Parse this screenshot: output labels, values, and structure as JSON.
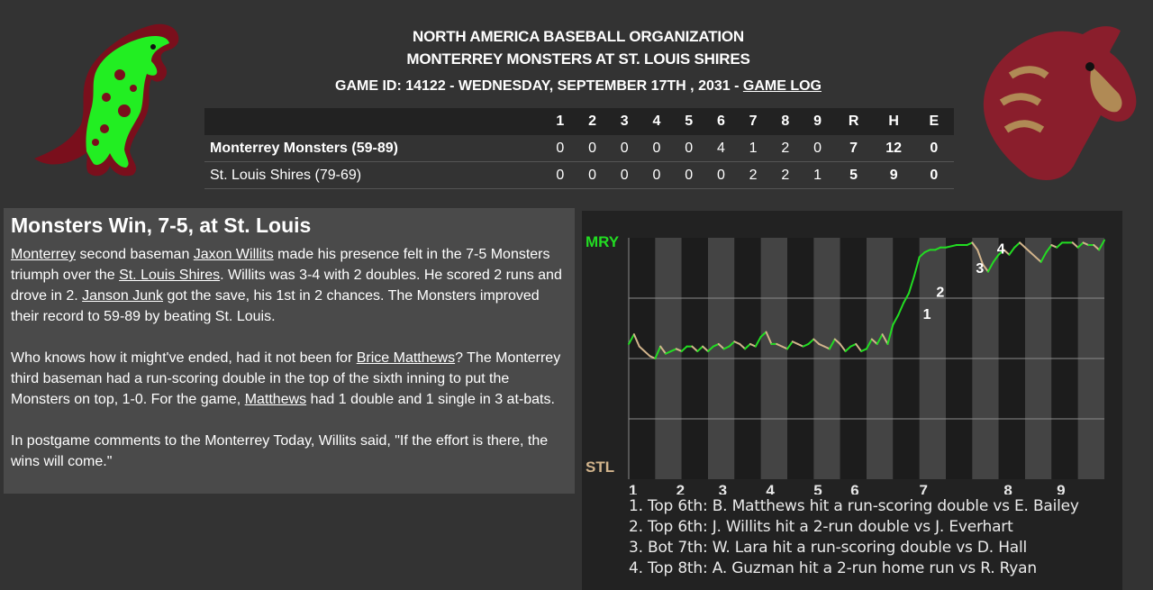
{
  "header": {
    "org": "NORTH AMERICA BASEBALL ORGANIZATION",
    "matchup": "MONTERREY MONSTERS AT ST. LOUIS SHIRES",
    "game_info": "GAME ID: 14122 - WEDNESDAY, SEPTEMBER 17TH , 2031 - ",
    "game_log_link": "GAME LOG",
    "home_logo": "horse-head-logo",
    "away_logo": "dinosaur-monster-logo"
  },
  "boxscore": {
    "innings": [
      "1",
      "2",
      "3",
      "4",
      "5",
      "6",
      "7",
      "8",
      "9"
    ],
    "totals_headers": [
      "R",
      "H",
      "E"
    ],
    "rows": [
      {
        "team": "Monterrey Monsters (59-89)",
        "innings": [
          "0",
          "0",
          "0",
          "0",
          "0",
          "4",
          "1",
          "2",
          "0"
        ],
        "totals": [
          "7",
          "12",
          "0"
        ]
      },
      {
        "team": "St. Louis Shires (79-69)",
        "innings": [
          "0",
          "0",
          "0",
          "0",
          "0",
          "0",
          "2",
          "2",
          "1"
        ],
        "totals": [
          "5",
          "9",
          "0"
        ]
      }
    ]
  },
  "article": {
    "headline": "Monsters Win, 7-5, at St. Louis",
    "p1": {
      "link_team": "Monterrey",
      "t1": " second baseman ",
      "link_player1": "Jaxon Willits",
      "t2": " made his presence felt in the 7-5 Monsters triumph over the ",
      "link_opponent": "St. Louis Shires",
      "t3": ". Willits was 3-4 with 2 doubles. He scored 2 runs and drove in 2. ",
      "link_player2": "Janson Junk",
      "t4": " got the save, his 1st in 2 chances. The Monsters improved their record to 59-89 by beating St. Louis."
    },
    "p2": {
      "t1": "Who knows how it might've ended, had it not been for ",
      "link_player": "Brice Matthews",
      "t2": "? The Monterrey third baseman had a run-scoring double in the top of the sixth inning to put the Monsters on top, 1-0. For the game, ",
      "link_player_b": "Matthews",
      "t3": " had 1 double and 1 single in 3 at-bats."
    },
    "p3": "In postgame comments to the Monterrey Today, Willits said, \"If the effort is there, the wins will come.\""
  },
  "chart_data": {
    "type": "line",
    "title": "",
    "y_top_label": "MRY",
    "y_bottom_label": "STL",
    "x_labels": [
      "1",
      "2",
      "3",
      "4",
      "5",
      "6",
      "7",
      "8",
      "9"
    ],
    "ylim": [
      0,
      1
    ],
    "colors": {
      "away": "#22dd22",
      "home": "#d2b48c"
    },
    "markers": [
      {
        "label": "1",
        "x": 6.5,
        "y": 0.68
      },
      {
        "label": "2",
        "x": 6.75,
        "y": 0.77
      },
      {
        "label": "3",
        "x": 7.5,
        "y": 0.87
      },
      {
        "label": "4",
        "x": 7.9,
        "y": 0.95
      }
    ],
    "series": [
      {
        "x": [
          1.0,
          1.1,
          1.2,
          1.3,
          1.4,
          1.5,
          1.6,
          1.7,
          1.8,
          1.9,
          2.0,
          2.1,
          2.2,
          2.3,
          2.4,
          2.5,
          2.6,
          2.7,
          2.8,
          2.9,
          3.0,
          3.1,
          3.2,
          3.3,
          3.4,
          3.5,
          3.6,
          3.7,
          3.8,
          3.9,
          4.0,
          4.1,
          4.2,
          4.3,
          4.4,
          4.5,
          4.6,
          4.7,
          4.8,
          4.9,
          5.0,
          5.1,
          5.2,
          5.3,
          5.4,
          5.5,
          5.6,
          5.7,
          5.8,
          5.9,
          6.0,
          6.1,
          6.2,
          6.3,
          6.4,
          6.5,
          6.6,
          6.7,
          6.8,
          6.9,
          7.0,
          7.2,
          7.4,
          7.5,
          7.6,
          7.7,
          7.8,
          7.9,
          8.0,
          8.1,
          8.2,
          8.3,
          8.4,
          8.5,
          8.6,
          8.7,
          8.8,
          8.9,
          9.0,
          9.1,
          9.2,
          9.3,
          9.4,
          9.5,
          9.6,
          9.7,
          9.8,
          9.9,
          10.0
        ],
        "y": [
          0.56,
          0.6,
          0.55,
          0.53,
          0.51,
          0.5,
          0.55,
          0.52,
          0.53,
          0.54,
          0.53,
          0.55,
          0.55,
          0.53,
          0.55,
          0.53,
          0.55,
          0.56,
          0.54,
          0.55,
          0.57,
          0.56,
          0.54,
          0.56,
          0.55,
          0.59,
          0.61,
          0.56,
          0.56,
          0.55,
          0.54,
          0.57,
          0.56,
          0.55,
          0.56,
          0.58,
          0.56,
          0.55,
          0.54,
          0.58,
          0.56,
          0.53,
          0.55,
          0.56,
          0.53,
          0.54,
          0.58,
          0.56,
          0.6,
          0.56,
          0.64,
          0.68,
          0.73,
          0.77,
          0.84,
          0.92,
          0.94,
          0.95,
          0.95,
          0.96,
          0.96,
          0.97,
          0.97,
          0.98,
          0.95,
          0.89,
          0.86,
          0.9,
          0.93,
          0.95,
          0.93,
          0.96,
          0.98,
          0.96,
          0.94,
          0.92,
          0.9,
          0.94,
          0.97,
          0.96,
          0.98,
          0.98,
          0.98,
          0.96,
          0.98,
          0.97,
          0.97,
          0.95,
          0.99
        ]
      }
    ],
    "notes": [
      "1. Top 6th: B. Matthews hit a run-scoring double vs E. Bailey",
      "2. Top 6th: J. Willits hit a 2-run double vs J. Everhart",
      "3. Bot 7th: W. Lara hit a run-scoring double vs D. Hall",
      "4. Top 8th: A. Guzman hit a 2-run home run vs R. Ryan"
    ]
  }
}
